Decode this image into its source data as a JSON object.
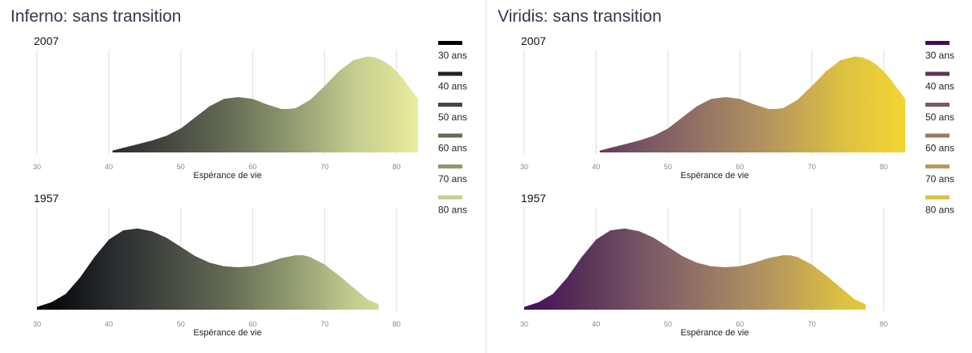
{
  "panels": [
    {
      "title": "Inferno: sans transition",
      "colormap": "inferno",
      "colors": [
        "#000000",
        "#21252a",
        "#42473f",
        "#646b55",
        "#8f9a70",
        "#c5cc8f"
      ],
      "gradient_end": "#e9ec9c"
    },
    {
      "title": "Viridis: sans transition",
      "colormap": "viridis",
      "colors": [
        "#440d5a",
        "#5b3558",
        "#7b5a65",
        "#9a7a64",
        "#b99a5c",
        "#dcc042"
      ],
      "gradient_end": "#f3d632"
    }
  ],
  "chart_data": {
    "type": "area",
    "charts": [
      {
        "title": "2007",
        "xlabel": "Espérance de vie",
        "ylabel": "",
        "xlim": [
          30,
          83
        ],
        "xticks": [
          30,
          40,
          50,
          60,
          70,
          80
        ],
        "grid": true,
        "series": [
          {
            "x": [
              40.5,
              42,
              44,
              46,
              48,
              50,
              52,
              54,
              56,
              58,
              60,
              62,
              64,
              65,
              66,
              68,
              70,
              72,
              74,
              76,
              77,
              78,
              79,
              80,
              81,
              82,
              83
            ],
            "y": [
              0.02,
              0.05,
              0.09,
              0.13,
              0.18,
              0.26,
              0.38,
              0.5,
              0.58,
              0.6,
              0.58,
              0.52,
              0.47,
              0.47,
              0.48,
              0.57,
              0.72,
              0.88,
              1.0,
              1.04,
              1.03,
              1.0,
              0.95,
              0.88,
              0.79,
              0.68,
              0.58
            ]
          }
        ]
      },
      {
        "title": "1957",
        "xlabel": "Espérance de vie",
        "ylabel": "",
        "xlim": [
          30,
          83
        ],
        "xticks": [
          30,
          40,
          50,
          60,
          70,
          80
        ],
        "grid": true,
        "series": [
          {
            "x": [
              30,
              32,
              34,
              36,
              38,
              40,
              42,
              44,
              46,
              48,
              50,
              52,
              54,
              56,
              58,
              60,
              62,
              64,
              66,
              67,
              68,
              70,
              72,
              74,
              76,
              77.5
            ],
            "y": [
              0.03,
              0.08,
              0.17,
              0.35,
              0.57,
              0.76,
              0.86,
              0.88,
              0.85,
              0.78,
              0.68,
              0.58,
              0.51,
              0.47,
              0.46,
              0.47,
              0.51,
              0.56,
              0.59,
              0.59,
              0.57,
              0.49,
              0.37,
              0.24,
              0.11,
              0.06
            ]
          }
        ]
      }
    ],
    "legend": {
      "placement": "right",
      "entries": [
        "30 ans",
        "40 ans",
        "50 ans",
        "60 ans",
        "70 ans",
        "80 ans"
      ]
    }
  }
}
